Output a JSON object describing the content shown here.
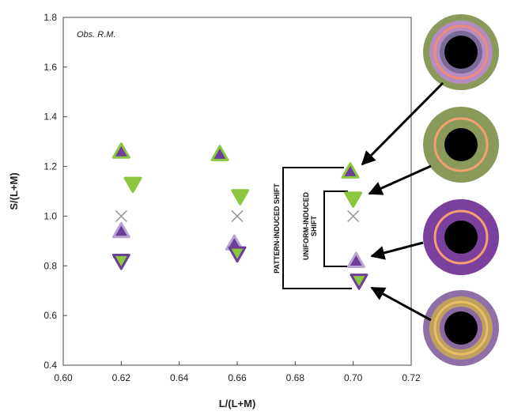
{
  "chart_data": {
    "type": "scatter",
    "xlabel": "L/(L+M)",
    "ylabel": "S/(L+M)",
    "annotations": [
      "Obs. R.M.",
      "PATTERN-INDUCED SHIFT",
      "UNIFORM-INDUCED SHIFT"
    ],
    "xlim": [
      0.6,
      0.72
    ],
    "ylim": [
      0.4,
      1.8
    ],
    "xticks": [
      {
        "value": 0.6,
        "label": "0.60"
      },
      0.62,
      0.64,
      0.66,
      0.68,
      {
        "value": 0.7,
        "label": "0.70"
      },
      0.72
    ],
    "yticks": [
      0.4,
      0.6,
      0.8,
      {
        "value": 1,
        "label": "1.0"
      },
      1.2,
      1.4,
      1.6,
      1.8
    ],
    "series": [
      {
        "marker": "triangle-up",
        "color": "#6b3f98",
        "edgecolor": "#8cc63f",
        "x": [
          0.62,
          0.654,
          0.699
        ],
        "values": [
          1.26,
          1.25,
          1.18
        ]
      },
      {
        "marker": "triangle-down",
        "color": "#8cc63f",
        "edgecolor": "#8cc63f",
        "x": [
          0.624,
          0.661,
          0.7
        ],
        "values": [
          1.13,
          1.08,
          1.07
        ]
      },
      {
        "marker": "triangle-up",
        "color": "#6b3f98",
        "edgecolor": "#b9a6d3",
        "x": [
          0.62,
          0.659,
          0.701
        ],
        "values": [
          0.94,
          0.89,
          0.82
        ]
      },
      {
        "marker": "triangle-down",
        "color": "#8cc63f",
        "edgecolor": "#6b3f98",
        "x": [
          0.62,
          0.66,
          0.702
        ],
        "values": [
          0.82,
          0.85,
          0.74
        ]
      },
      {
        "marker": "x",
        "color": "#999999",
        "edgecolor": "#999999",
        "x": [
          0.62,
          0.66,
          0.7
        ],
        "values": [
          1,
          1,
          1
        ]
      }
    ]
  }
}
